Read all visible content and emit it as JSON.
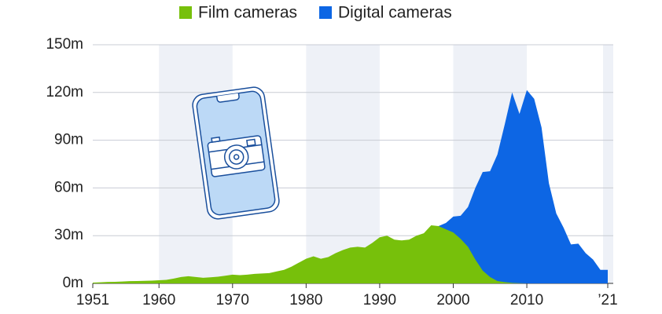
{
  "chart_data": {
    "type": "area",
    "x": [
      1951,
      1952,
      1953,
      1954,
      1955,
      1956,
      1957,
      1958,
      1959,
      1960,
      1961,
      1962,
      1963,
      1964,
      1965,
      1966,
      1967,
      1968,
      1969,
      1970,
      1971,
      1972,
      1973,
      1974,
      1975,
      1976,
      1977,
      1978,
      1979,
      1980,
      1981,
      1982,
      1983,
      1984,
      1985,
      1986,
      1987,
      1988,
      1989,
      1990,
      1991,
      1992,
      1993,
      1994,
      1995,
      1996,
      1997,
      1998,
      1999,
      2000,
      2001,
      2002,
      2003,
      2004,
      2005,
      2006,
      2007,
      2008,
      2009,
      2010,
      2011,
      2012,
      2013,
      2014,
      2015,
      2016,
      2017,
      2018,
      2019,
      2020,
      2021
    ],
    "series": [
      {
        "name": "Film cameras",
        "color": "#77c00b",
        "values": [
          0.5,
          0.7,
          0.9,
          1,
          1.2,
          1.4,
          1.5,
          1.6,
          1.7,
          2,
          2.2,
          3,
          4,
          4.5,
          4,
          3.5,
          3.8,
          4.2,
          4.8,
          5.5,
          5.2,
          5.5,
          6,
          6.2,
          6.5,
          7.5,
          8.5,
          10.5,
          13,
          15.5,
          17,
          15.5,
          16.5,
          19,
          21,
          22.5,
          23,
          22.5,
          25.5,
          29,
          30,
          27.5,
          27,
          27.5,
          30,
          31.5,
          36.5,
          36,
          34,
          32,
          28,
          23,
          15,
          8,
          4,
          1.5,
          0.8,
          0.3,
          0.1,
          0,
          null,
          null,
          null,
          null,
          null,
          null,
          null,
          null,
          null,
          null,
          null
        ]
      },
      {
        "name": "Digital cameras",
        "color": "#0d66e4",
        "values": [
          null,
          null,
          null,
          null,
          null,
          null,
          null,
          null,
          null,
          null,
          null,
          null,
          null,
          null,
          null,
          null,
          null,
          null,
          null,
          null,
          null,
          null,
          null,
          null,
          null,
          null,
          null,
          null,
          null,
          null,
          null,
          null,
          null,
          null,
          null,
          null,
          null,
          null,
          null,
          null,
          null,
          null,
          null,
          null,
          null,
          null,
          null,
          36,
          38,
          42,
          42.5,
          48,
          60,
          70,
          70.5,
          81,
          100,
          120,
          106.5,
          121.5,
          116,
          98,
          63,
          44,
          35,
          24.5,
          25,
          19,
          15,
          8.5,
          8.5
        ]
      }
    ],
    "xlim": [
      1951,
      2021
    ],
    "xticks": [
      1951,
      1960,
      1970,
      1980,
      1990,
      2000,
      2010,
      {
        "value": 2021,
        "label": "’21"
      }
    ],
    "ylim": [
      0,
      150
    ],
    "yticks": [
      {
        "value": 0,
        "label": "0m"
      },
      {
        "value": 30,
        "label": "30m"
      },
      {
        "value": 60,
        "label": "60m"
      },
      {
        "value": 90,
        "label": "90m"
      },
      {
        "value": 120,
        "label": "120m"
      },
      {
        "value": 150,
        "label": "150m"
      }
    ],
    "grid": true
  }
}
